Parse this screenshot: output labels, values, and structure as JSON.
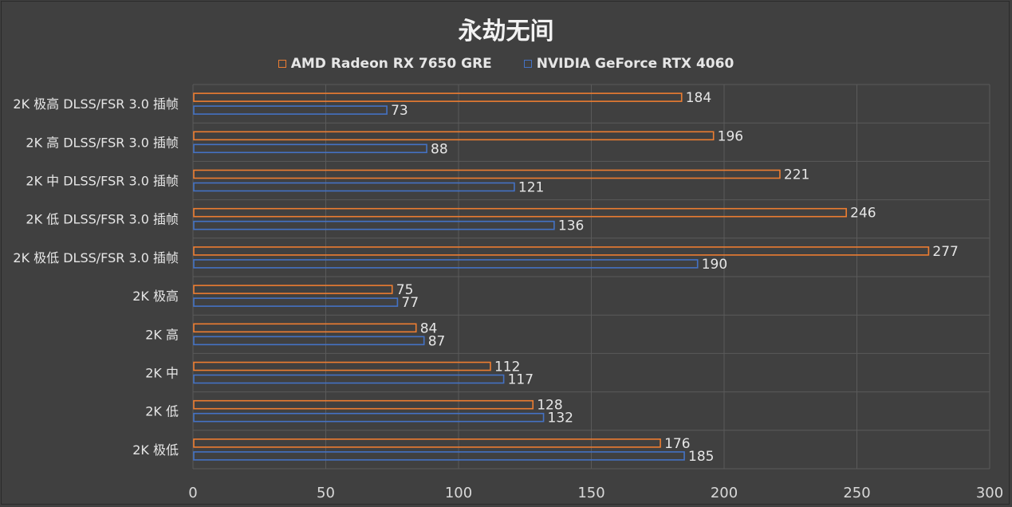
{
  "chart_data": {
    "type": "bar",
    "orientation": "horizontal",
    "title": "永劫无间",
    "categories": [
      "2K 极高 DLSS/FSR 3.0 插帧",
      "2K 高 DLSS/FSR 3.0 插帧",
      "2K 中 DLSS/FSR 3.0 插帧",
      "2K 低 DLSS/FSR 3.0 插帧",
      "2K 极低 DLSS/FSR 3.0 插帧",
      "2K 极高",
      "2K 高",
      "2K 中",
      "2K 低",
      "2K 极低"
    ],
    "series": [
      {
        "name": "AMD Radeon RX 7650 GRE",
        "color": "#ed7d31",
        "values": [
          184,
          196,
          221,
          246,
          277,
          75,
          84,
          112,
          128,
          176
        ]
      },
      {
        "name": "NVIDIA GeForce RTX 4060",
        "color": "#4472c4",
        "values": [
          73,
          88,
          121,
          136,
          190,
          77,
          87,
          117,
          132,
          185
        ]
      }
    ],
    "xlim": [
      0,
      300
    ],
    "xticks": [
      0,
      50,
      100,
      150,
      200,
      250,
      300
    ],
    "grid": true,
    "legend": "top-center"
  }
}
